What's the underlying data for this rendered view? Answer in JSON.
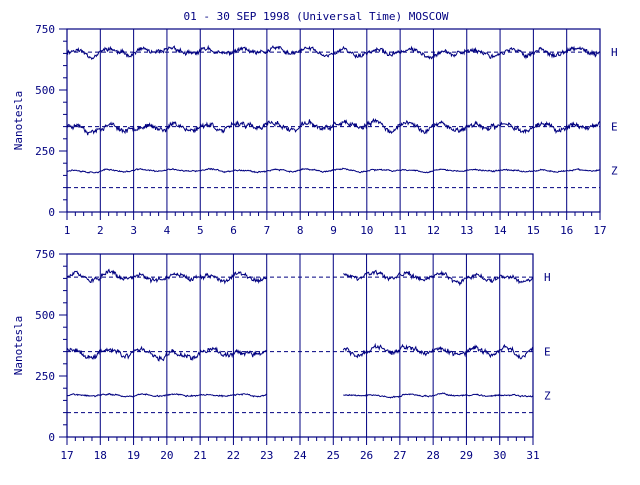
{
  "title": "01 - 30 SEP 1998 (Universal Time) MOSCOW",
  "colors": {
    "ink": "#000080",
    "text": "#000080",
    "background": "#ffffff"
  },
  "chart_data": [
    {
      "type": "line",
      "ylabel": "Nanotesla",
      "ylim": [
        0,
        750
      ],
      "yticks": [
        0,
        250,
        500,
        750
      ],
      "xlim": [
        1,
        17
      ],
      "xtick_labels": [
        "1",
        "2",
        "3",
        "4",
        "5",
        "6",
        "7",
        "8",
        "9",
        "10",
        "11",
        "12",
        "13",
        "14",
        "15",
        "16",
        "17"
      ],
      "grid": "vertical day lines",
      "series": [
        {
          "name": "H",
          "baseline": 655,
          "amplitude": 25,
          "seed": 11,
          "segments": [
            [
              1,
              17
            ]
          ]
        },
        {
          "name": "E",
          "baseline": 350,
          "amplitude": 28,
          "seed": 23,
          "segments": [
            [
              1,
              17
            ]
          ]
        },
        {
          "name": "Z",
          "baseline": 100,
          "offset": 70,
          "amplitude": 8,
          "seed": 37,
          "segments": [
            [
              1,
              17
            ]
          ]
        }
      ]
    },
    {
      "type": "line",
      "ylabel": "Nanotesla",
      "ylim": [
        0,
        750
      ],
      "yticks": [
        0,
        250,
        500,
        750
      ],
      "xlim": [
        17,
        31
      ],
      "xtick_labels": [
        "17",
        "18",
        "19",
        "20",
        "21",
        "22",
        "23",
        "24",
        "25",
        "26",
        "27",
        "28",
        "29",
        "30",
        "31"
      ],
      "grid": "vertical day lines",
      "series": [
        {
          "name": "H",
          "baseline": 655,
          "amplitude": 25,
          "seed": 51,
          "segments": [
            [
              17,
              23
            ],
            [
              25.3,
              31
            ]
          ]
        },
        {
          "name": "E",
          "baseline": 350,
          "amplitude": 28,
          "seed": 63,
          "segments": [
            [
              17,
              23
            ],
            [
              25.3,
              31
            ]
          ]
        },
        {
          "name": "Z",
          "baseline": 100,
          "offset": 70,
          "amplitude": 8,
          "seed": 77,
          "segments": [
            [
              17,
              23
            ],
            [
              25.3,
              31
            ]
          ]
        }
      ]
    }
  ]
}
